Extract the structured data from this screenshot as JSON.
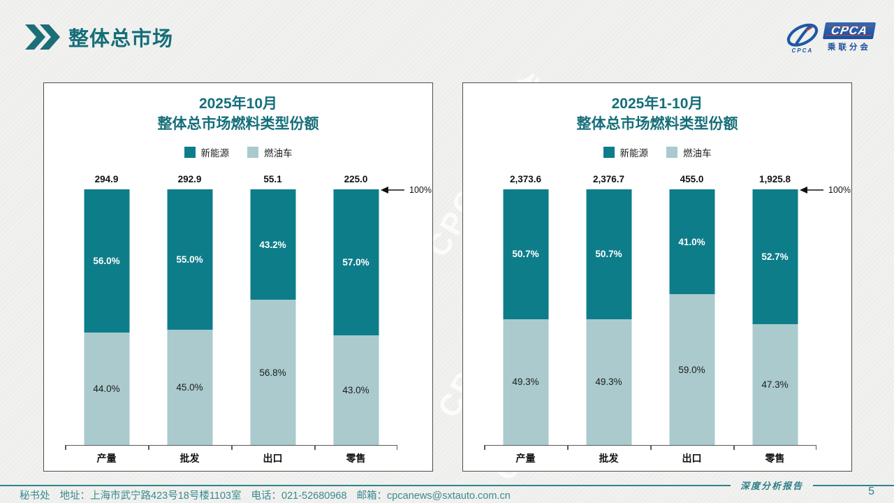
{
  "header": {
    "title": "整体总市场"
  },
  "logo": {
    "badge": "CPCA",
    "caption": "CPCA",
    "subtitle": "乘联分会"
  },
  "watermark": {
    "text": "CPCA 乘联会"
  },
  "chart_data": [
    {
      "type": "bar",
      "variant": "stacked-100-percent",
      "title_line1": "2025年10月",
      "title_line2": "整体总市场燃料类型份额",
      "legend": [
        "新能源",
        "燃油车"
      ],
      "legend_position": "top",
      "categories": [
        "产量",
        "批发",
        "出口",
        "零售"
      ],
      "totals": [
        "294.9",
        "292.9",
        "55.1",
        "225.0"
      ],
      "ylim": [
        0,
        100
      ],
      "grid": false,
      "axis_annotation": "100%",
      "series": [
        {
          "name": "新能源",
          "color": "#0E7D8A",
          "values": [
            56.0,
            55.0,
            43.2,
            57.0
          ],
          "labels": [
            "56.0%",
            "55.0%",
            "43.2%",
            "57.0%"
          ]
        },
        {
          "name": "燃油车",
          "color": "#AACACD",
          "values": [
            44.0,
            45.0,
            56.8,
            43.0
          ],
          "labels": [
            "44.0%",
            "45.0%",
            "56.8%",
            "43.0%"
          ]
        }
      ]
    },
    {
      "type": "bar",
      "variant": "stacked-100-percent",
      "title_line1": "2025年1-10月",
      "title_line2": "整体总市场燃料类型份额",
      "legend": [
        "新能源",
        "燃油车"
      ],
      "legend_position": "top",
      "categories": [
        "产量",
        "批发",
        "出口",
        "零售"
      ],
      "totals": [
        "2,373.6",
        "2,376.7",
        "455.0",
        "1,925.8"
      ],
      "ylim": [
        0,
        100
      ],
      "grid": false,
      "axis_annotation": "100%",
      "series": [
        {
          "name": "新能源",
          "color": "#0E7D8A",
          "values": [
            50.7,
            50.7,
            41.0,
            52.7
          ],
          "labels": [
            "50.7%",
            "50.7%",
            "41.0%",
            "52.7%"
          ]
        },
        {
          "name": "燃油车",
          "color": "#AACACD",
          "values": [
            49.3,
            49.3,
            59.0,
            47.3
          ],
          "labels": [
            "49.3%",
            "49.3%",
            "59.0%",
            "47.3%"
          ]
        }
      ]
    }
  ],
  "footer": {
    "info_parts": [
      "秘书处",
      "地址：上海市武宁路423号18号楼1103室",
      "电话：021-52680968",
      "邮箱：cpcanews@sxtauto.com.cn"
    ],
    "report_label": "深度分析报告",
    "page_number": "5"
  }
}
